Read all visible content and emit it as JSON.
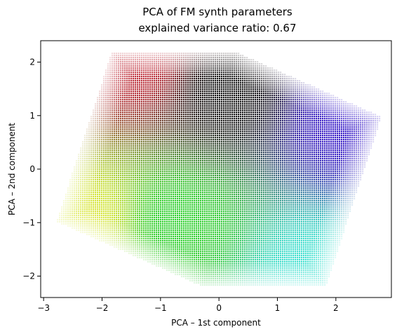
{
  "chart_data": {
    "type": "scatter",
    "title": "PCA of FM synth parameters",
    "subtitle": "explained variance ratio: 0.67",
    "xlabel": "PCA – 1st component",
    "ylabel": "PCA – 2nd component",
    "xlim": [
      -3.05,
      2.95
    ],
    "ylim": [
      -2.4,
      2.4
    ],
    "x_ticks": [
      -3,
      -2,
      -1,
      0,
      1,
      2
    ],
    "x_tick_labels": [
      "−3",
      "−2",
      "−1",
      "0",
      "1",
      "2"
    ],
    "y_ticks": [
      -2,
      -1,
      0,
      1,
      2
    ],
    "y_tick_labels": [
      "−2",
      "−1",
      "0",
      "1",
      "2"
    ],
    "grid": false,
    "legend": "none",
    "hull_vertices": [
      [
        -1.83,
        2.2
      ],
      [
        0.27,
        2.2
      ],
      [
        2.78,
        0.98
      ],
      [
        1.83,
        -2.2
      ],
      [
        -0.27,
        -2.2
      ],
      [
        -2.78,
        -0.98
      ]
    ],
    "region_colors": [
      {
        "name": "red",
        "x": -1.4,
        "y": 2.0,
        "color": "#c0303c"
      },
      {
        "name": "black",
        "x": 0.1,
        "y": 1.5,
        "color": "#141414"
      },
      {
        "name": "blue",
        "x": 2.2,
        "y": 0.85,
        "color": "#3a1ec8"
      },
      {
        "name": "cyan",
        "x": 1.6,
        "y": -1.9,
        "color": "#40e0d0"
      },
      {
        "name": "green",
        "x": -0.7,
        "y": -1.0,
        "color": "#30d030"
      },
      {
        "name": "yellow",
        "x": -2.3,
        "y": -0.9,
        "color": "#d8e63a"
      }
    ]
  }
}
